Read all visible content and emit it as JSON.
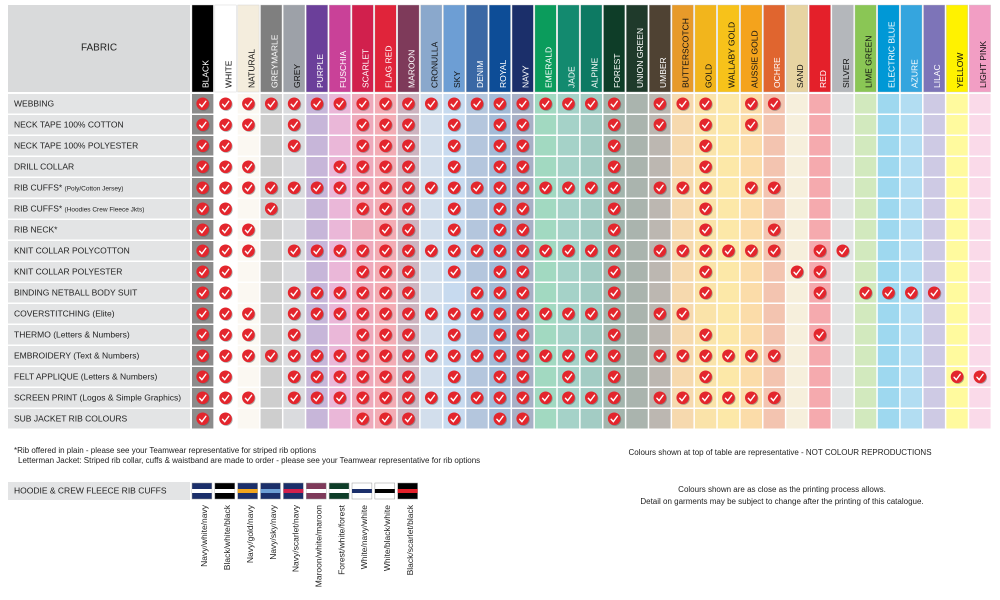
{
  "header": {
    "title": "FABRIC"
  },
  "columns": [
    {
      "name": "BLACK",
      "color": "#000000"
    },
    {
      "name": "WHITE",
      "color": "#ffffff"
    },
    {
      "name": "NATURAL",
      "color": "#f4eddd"
    },
    {
      "name": "GREYMARLE",
      "color": "#7f7f7f"
    },
    {
      "name": "GREY",
      "color": "#9da1a8"
    },
    {
      "name": "PURPLE",
      "color": "#6b3f9a"
    },
    {
      "name": "FUSCHIA",
      "color": "#c94198"
    },
    {
      "name": "SCARLET",
      "color": "#d1204d"
    },
    {
      "name": "FLAG RED",
      "color": "#e0243a"
    },
    {
      "name": "MAROON",
      "color": "#7e3a5a"
    },
    {
      "name": "CRONULLA",
      "color": "#8aa8cc"
    },
    {
      "name": "SKY",
      "color": "#6d9ed4"
    },
    {
      "name": "DENIM",
      "color": "#3a68a5"
    },
    {
      "name": "ROYAL",
      "color": "#0d4d97"
    },
    {
      "name": "NAVY",
      "color": "#1b2f6a"
    },
    {
      "name": "EMERALD",
      "color": "#0b9c5c"
    },
    {
      "name": "JADE",
      "color": "#138a6f"
    },
    {
      "name": "ALPINE",
      "color": "#0d7a63"
    },
    {
      "name": "FOREST",
      "color": "#0e3d28"
    },
    {
      "name": "UNION GREEN",
      "color": "#1f3a2b"
    },
    {
      "name": "UMBER",
      "color": "#4f4233"
    },
    {
      "name": "BUTTERSCOTCH",
      "color": "#e79a2a"
    },
    {
      "name": "GOLD",
      "color": "#f2b51c"
    },
    {
      "name": "WALLABY GOLD",
      "color": "#f7c21a"
    },
    {
      "name": "AUSSIE GOLD",
      "color": "#f4a31c"
    },
    {
      "name": "OCHRE",
      "color": "#e0652f"
    },
    {
      "name": "SAND",
      "color": "#e7d4a2"
    },
    {
      "name": "RED",
      "color": "#e4202a"
    },
    {
      "name": "SILVER",
      "color": "#b4b7bb"
    },
    {
      "name": "LIME GREEN",
      "color": "#8ac655"
    },
    {
      "name": "ELECTRIC BLUE",
      "color": "#0098d6"
    },
    {
      "name": "AZURE",
      "color": "#35a5de"
    },
    {
      "name": "LILAC",
      "color": "#7d74b8"
    },
    {
      "name": "YELLOW",
      "color": "#fff200"
    },
    {
      "name": "LIGHT PINK",
      "color": "#f29ec4"
    }
  ],
  "rows": [
    {
      "label": "WEBBING",
      "available": [
        0,
        1,
        2,
        3,
        4,
        5,
        6,
        7,
        8,
        9,
        10,
        11,
        12,
        13,
        14,
        15,
        16,
        17,
        18,
        20,
        21,
        22,
        24,
        25
      ]
    },
    {
      "label": "NECK TAPE 100% COTTON",
      "available": [
        0,
        1,
        2,
        4,
        7,
        8,
        9,
        11,
        13,
        14,
        18,
        20,
        22,
        24
      ]
    },
    {
      "label": "NECK TAPE 100% POLYESTER",
      "available": [
        0,
        1,
        4,
        7,
        8,
        9,
        11,
        13,
        14,
        18,
        22
      ]
    },
    {
      "label": "DRILL COLLAR",
      "available": [
        0,
        1,
        2,
        6,
        7,
        8,
        9,
        11,
        13,
        14,
        18,
        22
      ]
    },
    {
      "label": "RIB CUFFS*",
      "sub": "(Poly/Cotton Jersey)",
      "available": [
        0,
        1,
        2,
        3,
        4,
        5,
        6,
        7,
        8,
        9,
        10,
        11,
        12,
        13,
        14,
        15,
        16,
        17,
        18,
        20,
        21,
        22,
        24,
        25
      ]
    },
    {
      "label": "RIB CUFFS*",
      "sub": "(Hoodies Crew Fleece Jkts)",
      "available": [
        0,
        1,
        3,
        7,
        8,
        9,
        11,
        13,
        14,
        18,
        22
      ]
    },
    {
      "label": "RIB NECK*",
      "available": [
        0,
        1,
        2,
        8,
        9,
        11,
        13,
        14,
        18,
        22,
        25
      ]
    },
    {
      "label": "KNIT COLLAR POLYCOTTON",
      "available": [
        0,
        1,
        2,
        4,
        5,
        6,
        7,
        8,
        9,
        10,
        11,
        12,
        13,
        14,
        15,
        16,
        17,
        18,
        20,
        21,
        22,
        23,
        24,
        25,
        27,
        28
      ]
    },
    {
      "label": "KNIT COLLAR POLYESTER",
      "available": [
        0,
        1,
        7,
        8,
        9,
        11,
        13,
        14,
        18,
        22,
        26,
        27
      ]
    },
    {
      "label": "BINDING NETBALL BODY SUIT",
      "available": [
        0,
        1,
        4,
        5,
        6,
        7,
        8,
        9,
        12,
        13,
        14,
        18,
        22,
        27,
        29,
        30,
        31,
        32
      ]
    },
    {
      "label": "COVERSTITCHING (Elite)",
      "available": [
        0,
        1,
        2,
        4,
        5,
        6,
        7,
        8,
        9,
        10,
        11,
        12,
        13,
        14,
        15,
        16,
        17,
        18,
        20,
        21
      ]
    },
    {
      "label": "THERMO (Letters & Numbers)",
      "available": [
        0,
        1,
        2,
        4,
        7,
        8,
        9,
        11,
        13,
        14,
        18,
        22,
        27
      ]
    },
    {
      "label": "EMBROIDERY (Text & Numbers)",
      "available": [
        0,
        1,
        2,
        3,
        4,
        5,
        6,
        7,
        8,
        9,
        10,
        11,
        12,
        13,
        14,
        15,
        16,
        17,
        18,
        20,
        21,
        22,
        23,
        24,
        25
      ]
    },
    {
      "label": "FELT APPLIQUE (Letters & Numbers)",
      "available": [
        0,
        1,
        4,
        5,
        6,
        7,
        8,
        9,
        11,
        13,
        14,
        16,
        18,
        22,
        33,
        34
      ]
    },
    {
      "label": "SCREEN PRINT (Logos & Simple Graphics)",
      "available": [
        0,
        1,
        2,
        4,
        5,
        6,
        7,
        8,
        9,
        10,
        11,
        12,
        13,
        14,
        15,
        16,
        17,
        18,
        20,
        21,
        22,
        23,
        24,
        25
      ]
    },
    {
      "label": "SUB JACKET RIB COLOURS",
      "available": [
        0,
        1,
        7,
        8,
        9,
        11,
        13,
        14,
        18
      ]
    }
  ],
  "notes": [
    "*Rib offered in plain - please see your Teamwear representative for striped rib options",
    "Letterman Jacket: Striped rib collar, cuffs & waistband are made to order - please see your Teamwear representative for rib options"
  ],
  "disclaimer": "Colours shown at top of table are representative - NOT COLOUR REPRODUCTIONS",
  "printing_notes": [
    "Colours shown are as close as the printing process allows.",
    "Detail on garments may be subject to change after the printing of this catalogue."
  ],
  "rib_cuffs": {
    "title": "HOODIE & CREW FLEECE RIB CUFFS",
    "options": [
      {
        "label": "Navy/white/navy",
        "stripes": [
          "#1b2f6a",
          "#ffffff"
        ]
      },
      {
        "label": "Black/white/black",
        "stripes": [
          "#000000",
          "#ffffff"
        ]
      },
      {
        "label": "Navy/gold/navy",
        "stripes": [
          "#1b2f6a",
          "#f2a51c"
        ]
      },
      {
        "label": "Navy/sky/navy",
        "stripes": [
          "#1b2f6a",
          "#6d9ed4"
        ]
      },
      {
        "label": "Navy/scarlet/navy",
        "stripes": [
          "#1b2f6a",
          "#d1204d"
        ]
      },
      {
        "label": "Maroon/white/maroon",
        "stripes": [
          "#7e3a5a",
          "#ffffff"
        ]
      },
      {
        "label": "Forest/white/forest",
        "stripes": [
          "#0e3d28",
          "#ffffff"
        ]
      },
      {
        "label": "White/navy/white",
        "stripes": [
          "#ffffff",
          "#1b2f6a"
        ]
      },
      {
        "label": "White/black/white",
        "stripes": [
          "#ffffff",
          "#000000"
        ]
      },
      {
        "label": "Black/scarlet/black",
        "stripes": [
          "#000000",
          "#e4202a"
        ]
      }
    ]
  }
}
